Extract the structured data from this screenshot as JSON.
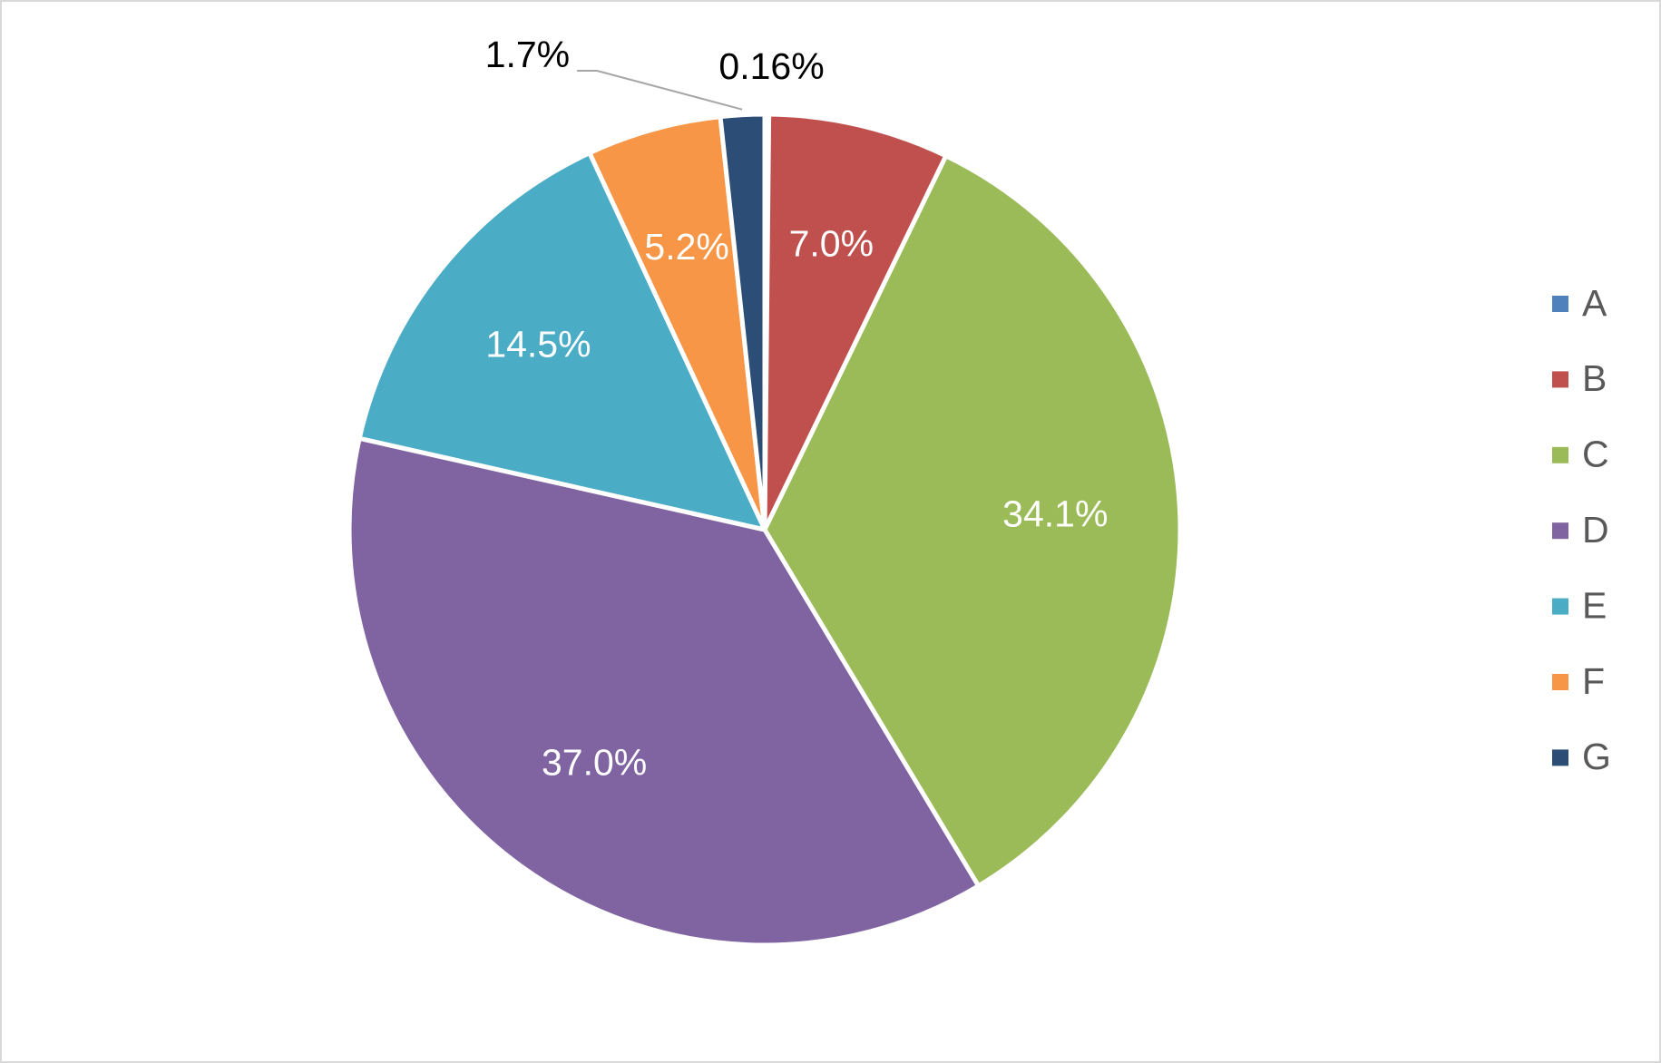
{
  "chart_data": {
    "type": "pie",
    "categories": [
      "A",
      "B",
      "C",
      "D",
      "E",
      "F",
      "G"
    ],
    "values": [
      0.16,
      7.0,
      34.1,
      37.0,
      14.5,
      5.2,
      1.7
    ],
    "value_labels": [
      "0.16%",
      "7.0%",
      "34.1%",
      "37.0%",
      "14.5%",
      "5.2%",
      "1.7%"
    ],
    "colors": [
      "#4f81bd",
      "#c0504d",
      "#9bbb59",
      "#8064a2",
      "#4bacc6",
      "#f79646",
      "#2c4d75"
    ],
    "legend": "right"
  }
}
